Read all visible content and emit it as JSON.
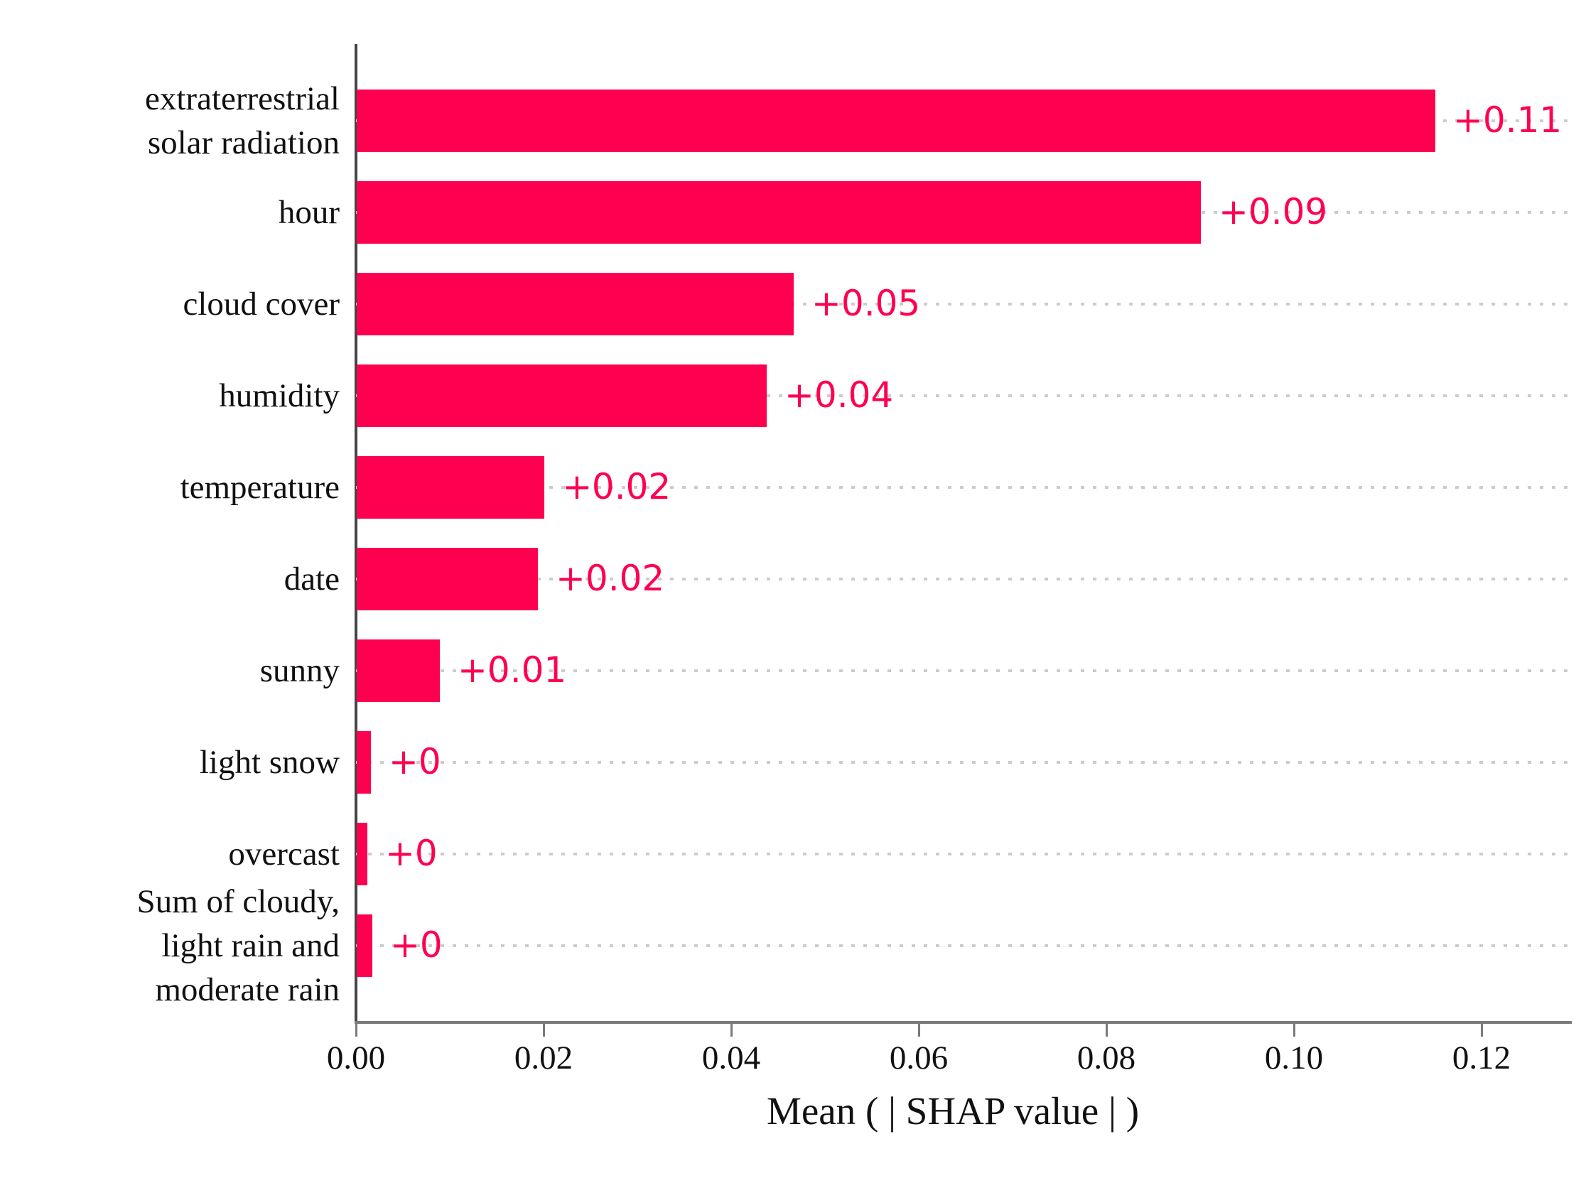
{
  "chart_data": {
    "type": "bar",
    "orientation": "horizontal",
    "title": "",
    "xlabel": "Mean ( | SHAP value | )",
    "ylabel": "",
    "categories": [
      "extraterrestrial\nsolar radiation",
      "hour",
      "cloud cover",
      "humidity",
      "temperature",
      "date",
      "sunny",
      "light snow",
      "overcast",
      "Sum of cloudy,\nlight rain and\nmoderate rain"
    ],
    "values": [
      0.115,
      0.09,
      0.0466,
      0.0437,
      0.02,
      0.0193,
      0.0089,
      0.0015,
      0.0011,
      0.0017
    ],
    "bar_value_labels": [
      "+0.11",
      "+0.09",
      "+0.05",
      "+0.04",
      "+0.02",
      "+0.02",
      "+0.01",
      "+0",
      "+0",
      "+0"
    ],
    "x_tick_labels": [
      "0.00",
      "0.02",
      "0.04",
      "0.06",
      "0.08",
      "0.10",
      "0.12"
    ],
    "x_tick_values": [
      0,
      0.02,
      0.04,
      0.06,
      0.08,
      0.1,
      0.12
    ],
    "xlim": [
      0,
      0.1295
    ],
    "grid": "horizontal dotted line at each category row",
    "legend": "none",
    "colors": {
      "bar": "#ff0051",
      "value_label": "#ff0051",
      "axis_text": "#111111",
      "y_spine": "#454545",
      "x_axis_line": "#7a7a7a",
      "gridline": "#cccccc",
      "background": "#ffffff"
    }
  }
}
